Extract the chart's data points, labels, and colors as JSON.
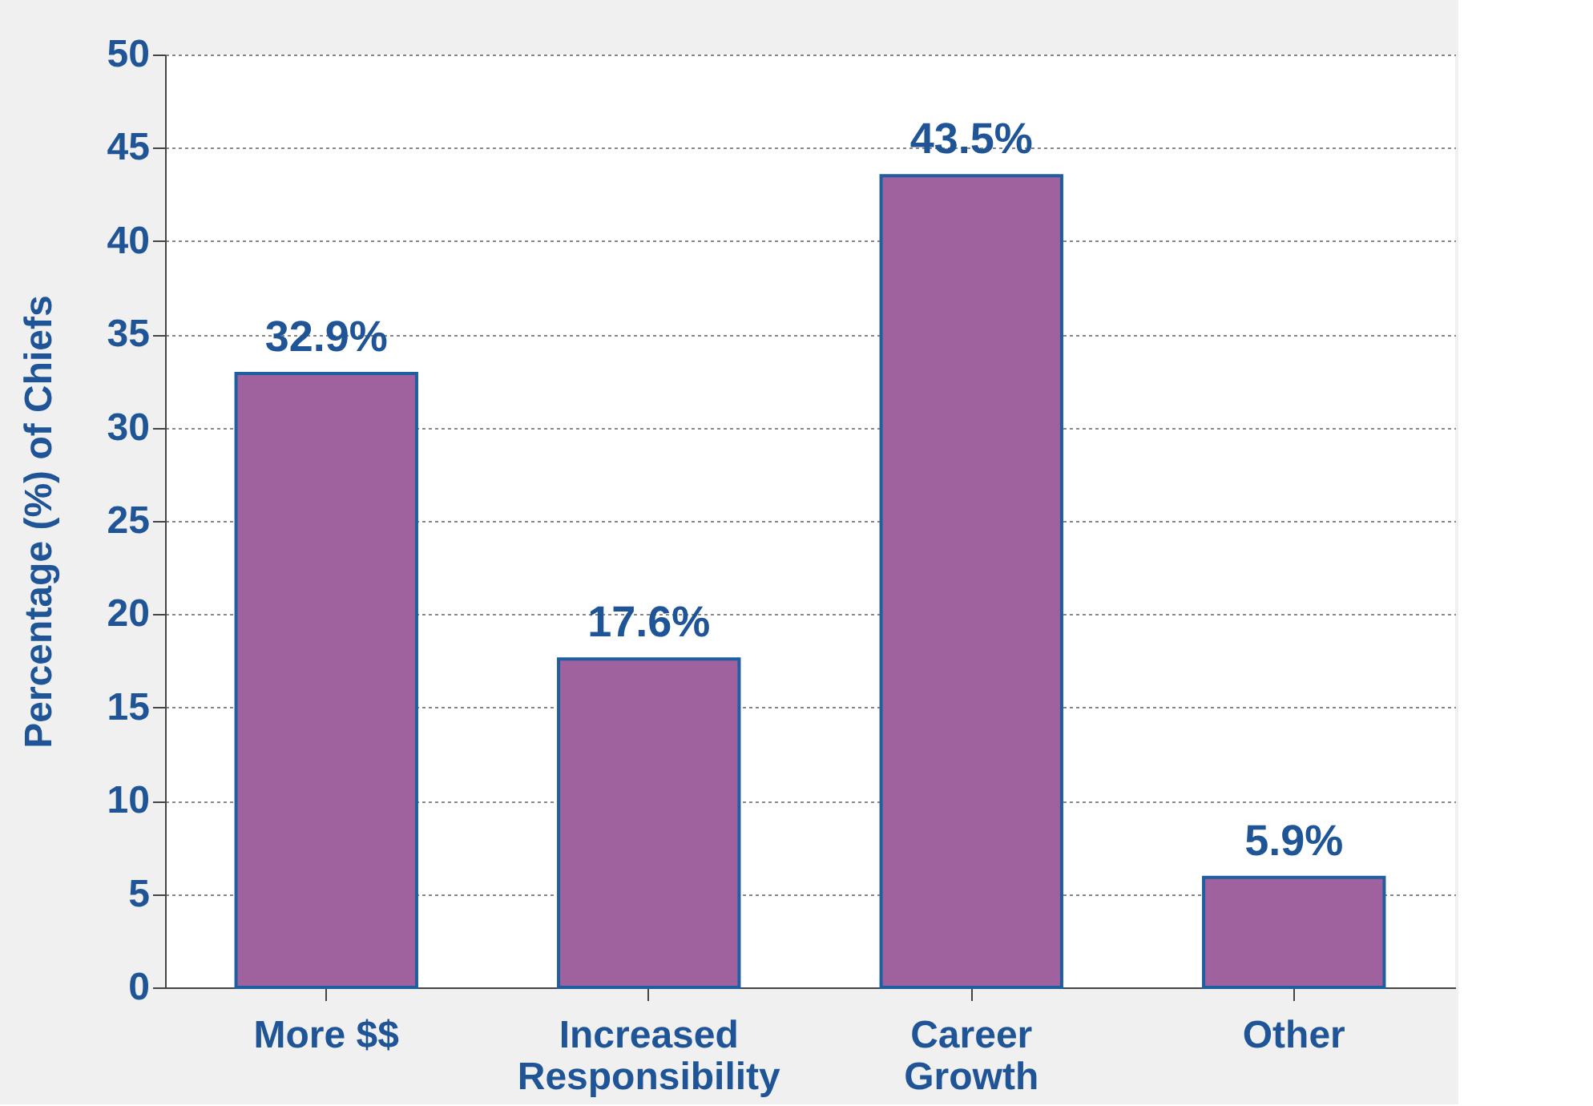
{
  "chart_data": {
    "type": "bar",
    "ylabel": "Percentage (%) of Chiefs",
    "categories": [
      "More $$",
      "Increased Responsibility",
      "Career Growth",
      "Other"
    ],
    "values": [
      32.9,
      17.6,
      43.5,
      5.9
    ],
    "value_labels": [
      "32.9%",
      "17.6%",
      "43.5%",
      "5.9%"
    ],
    "color": "#a0619f",
    "ylim": [
      0,
      50
    ],
    "yticks": [
      0,
      5,
      10,
      15,
      20,
      25,
      30,
      35,
      40,
      45,
      50
    ],
    "grid": "y"
  }
}
